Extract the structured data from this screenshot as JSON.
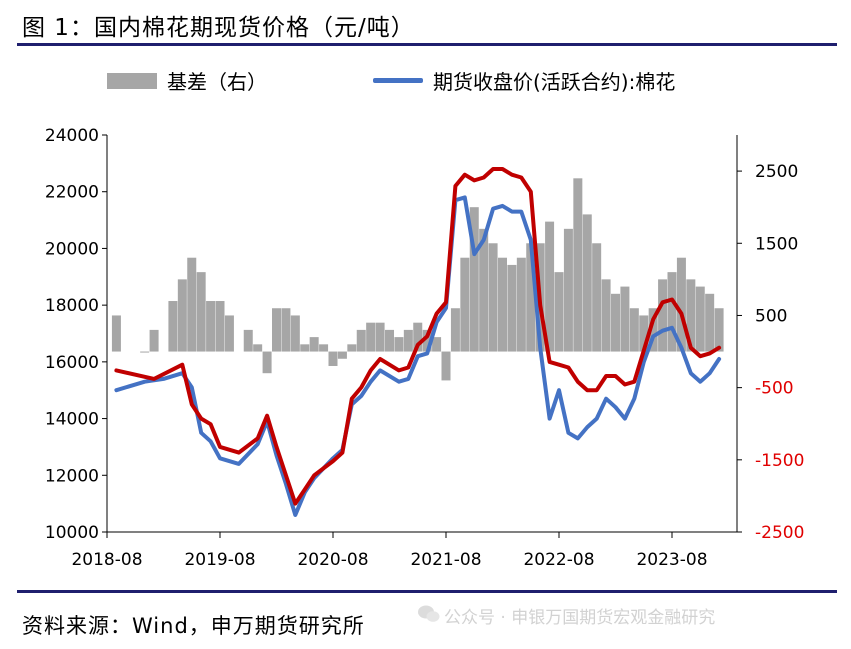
{
  "header": {
    "title": "图 1：国内棉花期现货价格（元/吨）"
  },
  "footer": {
    "source": "资料来源：Wind，申万期货研究所",
    "watermark": "公众号 · 申银万国期货宏观金融研究"
  },
  "colors": {
    "basis": "#a6a6a6",
    "futures": "#4472c4",
    "spot": "#c00000",
    "rule": "#1f1f6e",
    "right_axis_negative": "#e00000"
  },
  "chart_data": {
    "type": "line",
    "legend": [
      {
        "label": "基差（右）",
        "kind": "bar",
        "color": "#a6a6a6"
      },
      {
        "label": "期货收盘价(活跃合约):棉花",
        "kind": "line",
        "color": "#4472c4"
      }
    ],
    "legend_position": "top",
    "grid": false,
    "x_ticks": [
      "2018-08",
      "2019-08",
      "2020-08",
      "2021-08",
      "2022-08",
      "2023-08"
    ],
    "y_left": {
      "ticks": [
        "24000",
        "22000",
        "20000",
        "18000",
        "16000",
        "14000",
        "12000",
        "10000"
      ],
      "range": [
        10000,
        24000
      ]
    },
    "y_right": {
      "ticks": [
        "2500",
        "1500",
        "500",
        "-500",
        "-1500",
        "-2500"
      ],
      "range": [
        -2500,
        3000
      ]
    },
    "series": [
      {
        "name": "期货收盘价(活跃合约):棉花",
        "axis": "left",
        "color": "#4472c4",
        "points": [
          [
            "2018-09",
            15000
          ],
          [
            "2018-12",
            15300
          ],
          [
            "2019-02",
            15400
          ],
          [
            "2019-04",
            15600
          ],
          [
            "2019-05",
            15100
          ],
          [
            "2019-06",
            13500
          ],
          [
            "2019-07",
            13200
          ],
          [
            "2019-08",
            12600
          ],
          [
            "2019-10",
            12400
          ],
          [
            "2019-12",
            13100
          ],
          [
            "2020-01",
            13900
          ],
          [
            "2020-02",
            12700
          ],
          [
            "2020-03",
            11700
          ],
          [
            "2020-04",
            10600
          ],
          [
            "2020-05",
            11400
          ],
          [
            "2020-06",
            11900
          ],
          [
            "2020-08",
            12600
          ],
          [
            "2020-09",
            12900
          ],
          [
            "2020-10",
            14500
          ],
          [
            "2020-11",
            14800
          ],
          [
            "2020-12",
            15300
          ],
          [
            "2021-01",
            15700
          ],
          [
            "2021-03",
            15300
          ],
          [
            "2021-04",
            15400
          ],
          [
            "2021-05",
            16200
          ],
          [
            "2021-06",
            16300
          ],
          [
            "2021-07",
            17400
          ],
          [
            "2021-08",
            17900
          ],
          [
            "2021-09",
            21700
          ],
          [
            "2021-10",
            21800
          ],
          [
            "2021-11",
            19800
          ],
          [
            "2021-12",
            20300
          ],
          [
            "2022-01",
            21400
          ],
          [
            "2022-02",
            21500
          ],
          [
            "2022-03",
            21300
          ],
          [
            "2022-04",
            21300
          ],
          [
            "2022-05",
            20300
          ],
          [
            "2022-06",
            16500
          ],
          [
            "2022-07",
            14000
          ],
          [
            "2022-08",
            15000
          ],
          [
            "2022-09",
            13500
          ],
          [
            "2022-10",
            13300
          ],
          [
            "2022-11",
            13700
          ],
          [
            "2022-12",
            14000
          ],
          [
            "2023-01",
            14700
          ],
          [
            "2023-02",
            14400
          ],
          [
            "2023-03",
            14000
          ],
          [
            "2023-04",
            14700
          ],
          [
            "2023-05",
            16000
          ],
          [
            "2023-06",
            16900
          ],
          [
            "2023-07",
            17100
          ],
          [
            "2023-08",
            17200
          ],
          [
            "2023-09",
            16500
          ],
          [
            "2023-10",
            15600
          ],
          [
            "2023-11",
            15300
          ],
          [
            "2023-12",
            15600
          ],
          [
            "2024-01",
            16100
          ]
        ]
      },
      {
        "name": "",
        "axis": "left",
        "color": "#c00000",
        "points": [
          [
            "2018-09",
            15700
          ],
          [
            "2019-01",
            15400
          ],
          [
            "2019-04",
            15900
          ],
          [
            "2019-05",
            14500
          ],
          [
            "2019-06",
            14000
          ],
          [
            "2019-07",
            13800
          ],
          [
            "2019-08",
            13000
          ],
          [
            "2019-10",
            12800
          ],
          [
            "2019-12",
            13300
          ],
          [
            "2020-01",
            14100
          ],
          [
            "2020-02",
            13000
          ],
          [
            "2020-03",
            12000
          ],
          [
            "2020-04",
            11000
          ],
          [
            "2020-05",
            11500
          ],
          [
            "2020-06",
            12000
          ],
          [
            "2020-08",
            12500
          ],
          [
            "2020-09",
            12800
          ],
          [
            "2020-10",
            14700
          ],
          [
            "2020-11",
            15100
          ],
          [
            "2020-12",
            15700
          ],
          [
            "2021-01",
            16100
          ],
          [
            "2021-03",
            15700
          ],
          [
            "2021-04",
            15800
          ],
          [
            "2021-05",
            16600
          ],
          [
            "2021-06",
            16900
          ],
          [
            "2021-07",
            17700
          ],
          [
            "2021-08",
            18100
          ],
          [
            "2021-09",
            22200
          ],
          [
            "2021-10",
            22600
          ],
          [
            "2021-11",
            22400
          ],
          [
            "2021-12",
            22500
          ],
          [
            "2022-01",
            22800
          ],
          [
            "2022-02",
            22800
          ],
          [
            "2022-03",
            22600
          ],
          [
            "2022-04",
            22500
          ],
          [
            "2022-05",
            22000
          ],
          [
            "2022-06",
            18000
          ],
          [
            "2022-07",
            16000
          ],
          [
            "2022-08",
            15900
          ],
          [
            "2022-09",
            15800
          ],
          [
            "2022-10",
            15300
          ],
          [
            "2022-11",
            15000
          ],
          [
            "2022-12",
            15000
          ],
          [
            "2023-01",
            15500
          ],
          [
            "2023-02",
            15500
          ],
          [
            "2023-03",
            15200
          ],
          [
            "2023-04",
            15300
          ],
          [
            "2023-05",
            16400
          ],
          [
            "2023-06",
            17500
          ],
          [
            "2023-07",
            18100
          ],
          [
            "2023-08",
            18200
          ],
          [
            "2023-09",
            17700
          ],
          [
            "2023-10",
            16500
          ],
          [
            "2023-11",
            16200
          ],
          [
            "2023-12",
            16300
          ],
          [
            "2024-01",
            16500
          ]
        ]
      }
    ],
    "bars": {
      "name": "基差（右）",
      "axis": "right",
      "color": "#a6a6a6",
      "points": [
        [
          "2018-09",
          500
        ],
        [
          "2018-12",
          0
        ],
        [
          "2019-01",
          300
        ],
        [
          "2019-03",
          700
        ],
        [
          "2019-04",
          1000
        ],
        [
          "2019-05",
          1300
        ],
        [
          "2019-06",
          1100
        ],
        [
          "2019-07",
          700
        ],
        [
          "2019-08",
          700
        ],
        [
          "2019-09",
          500
        ],
        [
          "2019-11",
          300
        ],
        [
          "2019-12",
          100
        ],
        [
          "2020-01",
          -300
        ],
        [
          "2020-02",
          600
        ],
        [
          "2020-03",
          600
        ],
        [
          "2020-04",
          500
        ],
        [
          "2020-05",
          100
        ],
        [
          "2020-06",
          200
        ],
        [
          "2020-07",
          100
        ],
        [
          "2020-08",
          -200
        ],
        [
          "2020-09",
          -100
        ],
        [
          "2020-10",
          100
        ],
        [
          "2020-11",
          300
        ],
        [
          "2020-12",
          400
        ],
        [
          "2021-01",
          400
        ],
        [
          "2021-02",
          300
        ],
        [
          "2021-03",
          200
        ],
        [
          "2021-04",
          300
        ],
        [
          "2021-05",
          400
        ],
        [
          "2021-06",
          300
        ],
        [
          "2021-07",
          200
        ],
        [
          "2021-08",
          -400
        ],
        [
          "2021-09",
          600
        ],
        [
          "2021-10",
          1300
        ],
        [
          "2021-11",
          2000
        ],
        [
          "2021-12",
          1700
        ],
        [
          "2022-01",
          1500
        ],
        [
          "2022-02",
          1300
        ],
        [
          "2022-03",
          1200
        ],
        [
          "2022-04",
          1300
        ],
        [
          "2022-05",
          1500
        ],
        [
          "2022-06",
          1500
        ],
        [
          "2022-07",
          1800
        ],
        [
          "2022-08",
          1100
        ],
        [
          "2022-09",
          1700
        ],
        [
          "2022-10",
          2400
        ],
        [
          "2022-11",
          1900
        ],
        [
          "2022-12",
          1500
        ],
        [
          "2023-01",
          1000
        ],
        [
          "2023-02",
          800
        ],
        [
          "2023-03",
          900
        ],
        [
          "2023-04",
          600
        ],
        [
          "2023-05",
          500
        ],
        [
          "2023-06",
          600
        ],
        [
          "2023-07",
          1000
        ],
        [
          "2023-08",
          1100
        ],
        [
          "2023-09",
          1300
        ],
        [
          "2023-10",
          1000
        ],
        [
          "2023-11",
          900
        ],
        [
          "2023-12",
          800
        ],
        [
          "2024-01",
          600
        ]
      ]
    }
  }
}
